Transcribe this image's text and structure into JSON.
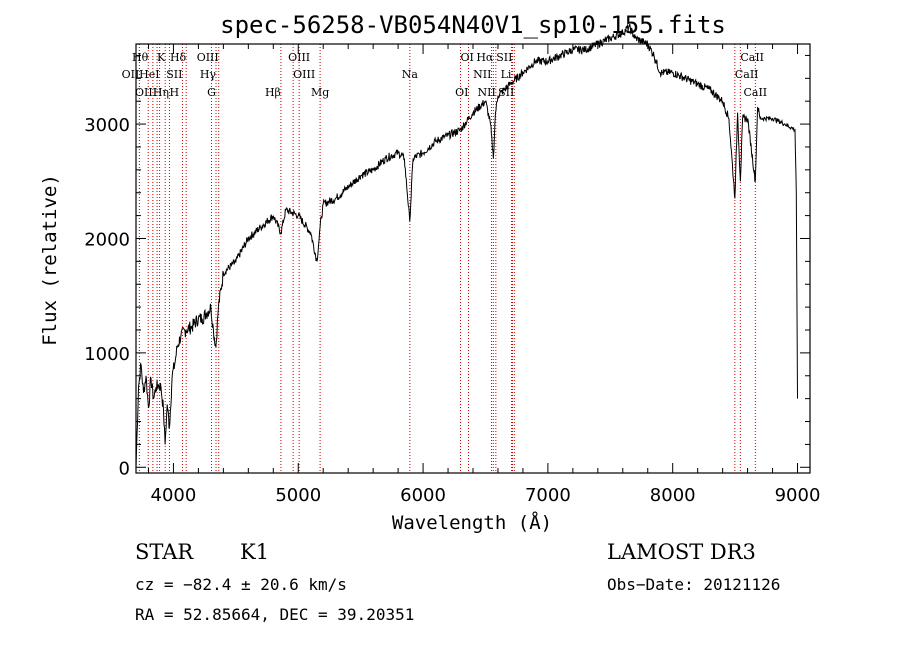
{
  "chart_data": {
    "type": "line",
    "title": "spec-56258-VB054N40V1_sp10-155.fits",
    "xlabel": "Wavelength (Å)",
    "ylabel": "Flux (relative)",
    "xlim": [
      3700,
      9100
    ],
    "ylim": [
      -50,
      3700
    ],
    "xticks": [
      4000,
      5000,
      6000,
      7000,
      8000,
      9000
    ],
    "yticks": [
      0,
      1000,
      2000,
      3000
    ],
    "xticklabels": [
      "4000",
      "5000",
      "6000",
      "7000",
      "8000",
      "9000"
    ],
    "yticklabels": [
      "0",
      "1000",
      "2000",
      "3000"
    ],
    "grid": false,
    "series": [
      {
        "name": "spectrum",
        "x": [
          3700,
          3720,
          3740,
          3760,
          3780,
          3800,
          3820,
          3840,
          3860,
          3880,
          3900,
          3920,
          3933,
          3950,
          3968,
          3990,
          4010,
          4030,
          4060,
          4100,
          4150,
          4200,
          4230,
          4260,
          4300,
          4320,
          4340,
          4360,
          4400,
          4500,
          4600,
          4700,
          4800,
          4861,
          4900,
          5000,
          5100,
          5150,
          5175,
          5200,
          5300,
          5400,
          5500,
          5600,
          5700,
          5800,
          5850,
          5893,
          5920,
          6000,
          6100,
          6200,
          6300,
          6400,
          6500,
          6540,
          6563,
          6580,
          6600,
          6700,
          6800,
          6900,
          7000,
          7100,
          7200,
          7300,
          7400,
          7500,
          7600,
          7650,
          7700,
          7800,
          7850,
          7900,
          8000,
          8100,
          8200,
          8300,
          8400,
          8450,
          8498,
          8520,
          8542,
          8560,
          8600,
          8662,
          8680,
          8700,
          8800,
          8900,
          8980,
          8990,
          9000
        ],
        "y": [
          0,
          700,
          900,
          650,
          800,
          520,
          780,
          600,
          700,
          720,
          700,
          500,
          200,
          550,
          350,
          800,
          900,
          1050,
          1150,
          1200,
          1230,
          1300,
          1300,
          1340,
          1400,
          1200,
          1050,
          1400,
          1700,
          1800,
          2000,
          2100,
          2200,
          2050,
          2250,
          2200,
          2050,
          1800,
          2100,
          2300,
          2350,
          2450,
          2550,
          2600,
          2700,
          2750,
          2700,
          2150,
          2700,
          2750,
          2850,
          2900,
          2950,
          3100,
          3200,
          3000,
          2700,
          3100,
          3250,
          3350,
          3450,
          3550,
          3550,
          3600,
          3650,
          3650,
          3700,
          3750,
          3800,
          3850,
          3750,
          3700,
          3600,
          3450,
          3450,
          3400,
          3350,
          3300,
          3200,
          3050,
          2350,
          3100,
          2500,
          3050,
          3050,
          2500,
          3150,
          3050,
          3050,
          3000,
          2950,
          2400,
          600
        ]
      }
    ],
    "lines": [
      {
        "name": "OII",
        "x": 3727,
        "row": 1,
        "anchor": "end"
      },
      {
        "name": "Hθ",
        "x": 3798,
        "row": 0,
        "anchor": "end"
      },
      {
        "name": "OIII",
        "x": 3869,
        "row": 2,
        "anchor": "end"
      },
      {
        "name": "HeI",
        "x": 3889,
        "row": 1,
        "anchor": "end"
      },
      {
        "name": "K",
        "x": 3934,
        "row": 0,
        "anchor": "end"
      },
      {
        "name": "Hη",
        "x": 3835,
        "row": 2,
        "anchor": "start"
      },
      {
        "name": "H",
        "x": 3968,
        "row": 2,
        "anchor": "start"
      },
      {
        "name": "SII",
        "x": 4072,
        "row": 1,
        "anchor": "end"
      },
      {
        "name": "Hδ",
        "x": 4102,
        "row": 0,
        "anchor": "end"
      },
      {
        "name": "G",
        "x": 4305,
        "row": 2,
        "anchor": "middle"
      },
      {
        "name": "OIII",
        "x": 4363,
        "row": 0,
        "anchor": "end"
      },
      {
        "name": "Hγ",
        "x": 4341,
        "row": 1,
        "anchor": "end"
      },
      {
        "name": "Hβ",
        "x": 4861,
        "row": 2,
        "anchor": "end"
      },
      {
        "name": "OIII",
        "x": 4959,
        "row": 1,
        "anchor": "start"
      },
      {
        "name": "OIII",
        "x": 5007,
        "row": 0,
        "anchor": "middle"
      },
      {
        "name": "Mg",
        "x": 5175,
        "row": 2,
        "anchor": "middle"
      },
      {
        "name": "Na",
        "x": 5894,
        "row": 1,
        "anchor": "middle"
      },
      {
        "name": "OI",
        "x": 6300,
        "row": 0,
        "anchor": "start"
      },
      {
        "name": "OI",
        "x": 6364,
        "row": 2,
        "anchor": "end"
      },
      {
        "name": "NII",
        "x": 6548,
        "row": 1,
        "anchor": "end"
      },
      {
        "name": "Hα",
        "x": 6563,
        "row": 0,
        "anchor": "end"
      },
      {
        "name": "NII",
        "x": 6583,
        "row": 2,
        "anchor": "end"
      },
      {
        "name": "SII",
        "x": 6716,
        "row": 0,
        "anchor": "end"
      },
      {
        "name": "Li",
        "x": 6708,
        "row": 1,
        "anchor": "end"
      },
      {
        "name": "SII",
        "x": 6731,
        "row": 2,
        "anchor": "end"
      },
      {
        "name": "CaII",
        "x": 8498,
        "row": 1,
        "anchor": "start"
      },
      {
        "name": "CaII",
        "x": 8542,
        "row": 0,
        "anchor": "start"
      },
      {
        "name": "CaII",
        "x": 8662,
        "row": 2,
        "anchor": "middle"
      }
    ]
  },
  "info": {
    "class": "STAR",
    "subclass": "K1",
    "survey": "LAMOST DR3",
    "cz": "cz = −82.4 ± 20.6 km/s",
    "obs_date": "Obs−Date: 20121126",
    "coords": "RA =  52.85664, DEC =  39.20351"
  }
}
